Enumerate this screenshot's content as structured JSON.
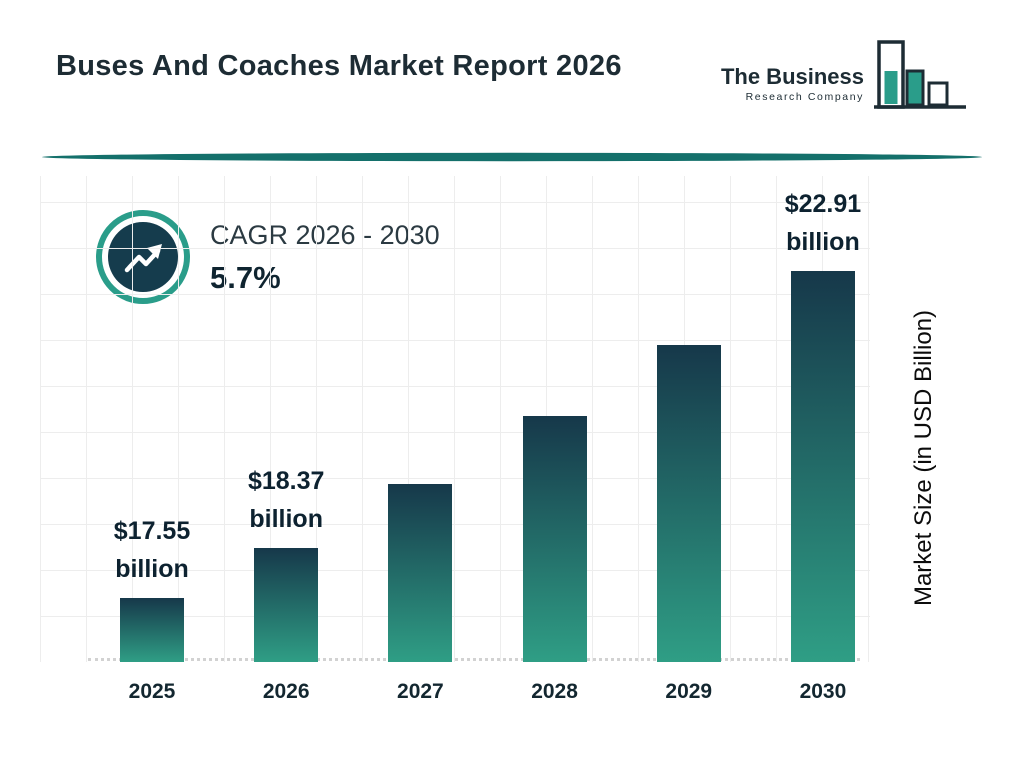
{
  "header": {
    "title": "Buses And Coaches Market Report 2026"
  },
  "logo": {
    "line1": "The Business",
    "line2": "Research Company"
  },
  "cagr": {
    "label": "CAGR 2026 - 2030",
    "value": "5.7%"
  },
  "chart_data": {
    "type": "bar",
    "title": "Buses And Coaches Market Report 2026",
    "categories": [
      "2025",
      "2026",
      "2027",
      "2028",
      "2029",
      "2030"
    ],
    "values": [
      17.55,
      18.37,
      19.42,
      20.53,
      21.7,
      22.91
    ],
    "value_labels": [
      [
        "$17.55",
        "billion"
      ],
      [
        "$18.37",
        "billion"
      ],
      null,
      null,
      null,
      [
        "$22.91",
        "billion"
      ]
    ],
    "xlabel": "",
    "ylabel": "Market Size (in USD Billion)",
    "unit": "USD Billion",
    "grid": true,
    "baseline_style": "dotted",
    "legend": false
  },
  "colors": {
    "teal": "#2a9d8a",
    "dark_navy": "#153c4d",
    "divider": "#14706b",
    "bar_gradient_top": "#16384a",
    "bar_gradient_bottom": "#2f9e85"
  }
}
